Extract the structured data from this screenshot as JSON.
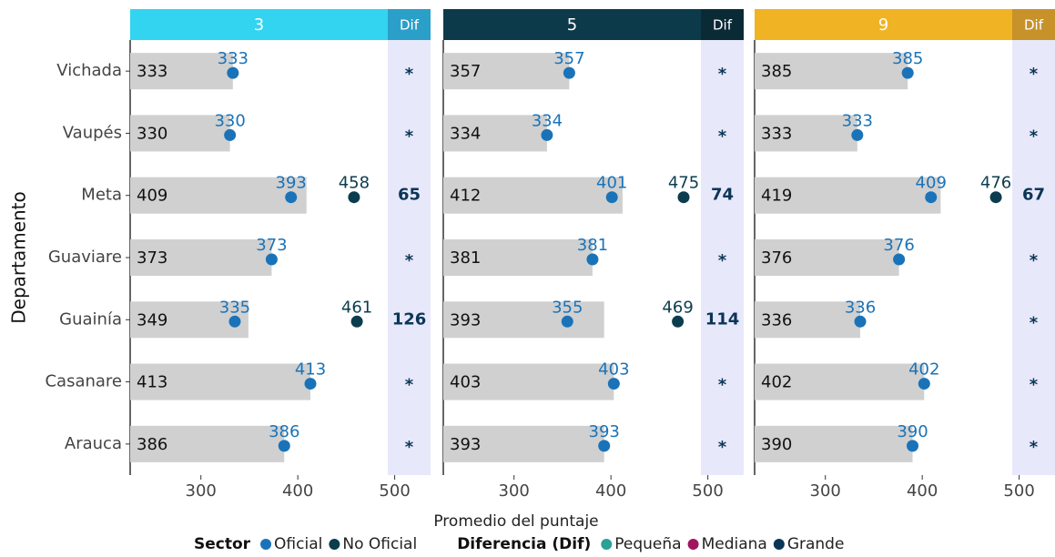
{
  "chart_data": {
    "type": "bar",
    "x_label": "Promedio del puntaje",
    "y_label": "Departamento",
    "categories": [
      "Vichada",
      "Vaupés",
      "Meta",
      "Guaviare",
      "Guainía",
      "Casanare",
      "Arauca"
    ],
    "xlim": [
      227,
      537
    ],
    "xticks": [
      300,
      400,
      500
    ],
    "bar_color": "#d0d0d0",
    "panels": [
      {
        "title": "3",
        "dif_title": "Dif",
        "color": "#33d4f0",
        "dif_color": "#2a9fc8",
        "totals": [
          333,
          330,
          409,
          373,
          349,
          413,
          386
        ],
        "series": [
          {
            "name": "Oficial",
            "color": "#1a73b8",
            "values": [
              333,
              330,
              393,
              373,
              335,
              413,
              386
            ]
          },
          {
            "name": "No Oficial",
            "color": "#0b3d4f",
            "values": [
              null,
              null,
              458,
              null,
              461,
              null,
              null
            ]
          }
        ],
        "dif": [
          "*",
          "*",
          65,
          "*",
          126,
          "*",
          "*"
        ]
      },
      {
        "title": "5",
        "dif_title": "Dif",
        "color": "#0d3a4a",
        "dif_color": "#0a2a36",
        "totals": [
          357,
          334,
          412,
          381,
          393,
          403,
          393
        ],
        "series": [
          {
            "name": "Oficial",
            "color": "#1a73b8",
            "values": [
              357,
              334,
              401,
              381,
              355,
              403,
              393
            ]
          },
          {
            "name": "No Oficial",
            "color": "#0b3d4f",
            "values": [
              null,
              null,
              475,
              null,
              469,
              null,
              null
            ]
          }
        ],
        "dif": [
          "*",
          "*",
          74,
          "*",
          114,
          "*",
          "*"
        ]
      },
      {
        "title": "9",
        "dif_title": "Dif",
        "color": "#f0b323",
        "dif_color": "#c8922a",
        "totals": [
          385,
          333,
          419,
          376,
          336,
          402,
          390
        ],
        "series": [
          {
            "name": "Oficial",
            "color": "#1a73b8",
            "values": [
              385,
              333,
              409,
              376,
              336,
              402,
              390
            ]
          },
          {
            "name": "No Oficial",
            "color": "#0b3d4f",
            "values": [
              null,
              null,
              476,
              null,
              null,
              null,
              null
            ]
          }
        ],
        "dif": [
          "*",
          "*",
          67,
          "*",
          "*",
          "*",
          "*"
        ]
      }
    ],
    "legend": [
      {
        "title": "Sector",
        "items": [
          {
            "name": "Oficial",
            "color": "#1a73b8"
          },
          {
            "name": "No Oficial",
            "color": "#0b3d4f"
          }
        ]
      },
      {
        "title": "Diferencia (Dif)",
        "items": [
          {
            "name": "Pequeña",
            "color": "#2aa198"
          },
          {
            "name": "Mediana",
            "color": "#a0155d"
          },
          {
            "name": "Grande",
            "color": "#0a3656"
          }
        ]
      }
    ],
    "dif_text_color": "#0a3656"
  }
}
